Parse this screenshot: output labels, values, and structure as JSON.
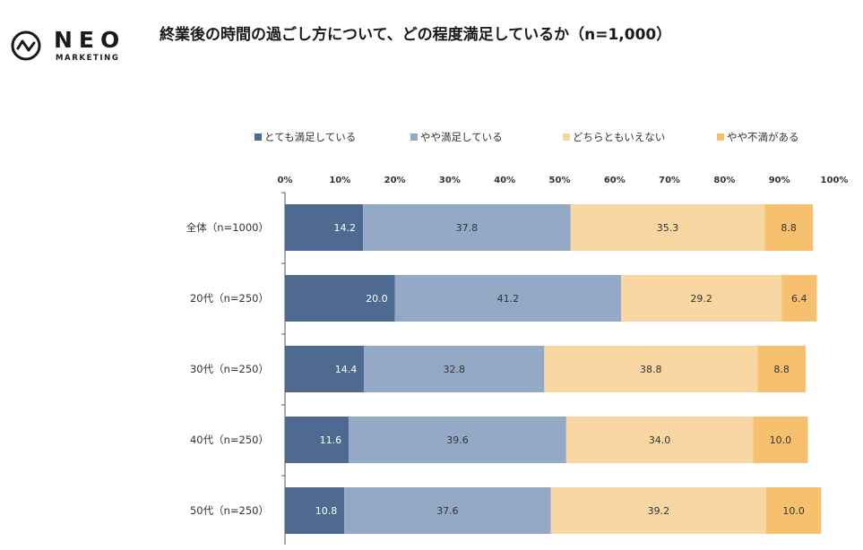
{
  "brand": {
    "name": "NEO",
    "sub": "MARKETING"
  },
  "chart_data": {
    "type": "bar",
    "orientation": "horizontal",
    "stacked": true,
    "title": "終業後の時間の過ごし方について、どの程度満足しているか（n=1,000）",
    "categories": [
      "全体（n=1000）",
      "20代（n=250）",
      "30代（n=250）",
      "40代（n=250）",
      "50代（n=250）"
    ],
    "series": [
      {
        "name": "とても満足している",
        "values": [
          14.2,
          20.0,
          14.4,
          11.6,
          10.8
        ],
        "color": "#4e6a91",
        "label_color": "#ffffff"
      },
      {
        "name": "やや満足している",
        "values": [
          37.8,
          41.2,
          32.8,
          39.6,
          37.6
        ],
        "color": "#93a9c6",
        "label_color": "#333333"
      },
      {
        "name": "どちらともいえない",
        "values": [
          35.3,
          29.2,
          38.8,
          34.0,
          39.2
        ],
        "color": "#f9d7a3",
        "label_color": "#333333"
      },
      {
        "name": "やや不満がある",
        "values": [
          8.8,
          6.4,
          8.8,
          10.0,
          10.0
        ],
        "color": "#f7c06f",
        "label_color": "#333333"
      }
    ],
    "xlim": [
      0,
      100
    ],
    "xticks": [
      "0%",
      "10%",
      "20%",
      "30%",
      "40%",
      "50%",
      "60%",
      "70%",
      "80%",
      "90%",
      "100%"
    ],
    "legend_position": "top"
  }
}
